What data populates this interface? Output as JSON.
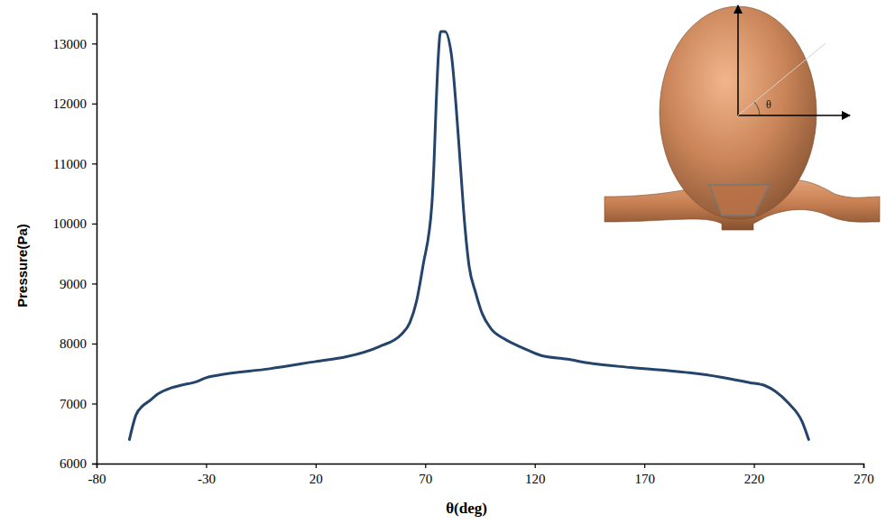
{
  "chart_data": {
    "type": "line",
    "x_label": "θ(deg)",
    "y_label": "Pressure(Pa)",
    "annotations": [
      "θ"
    ],
    "color": "#24446b",
    "x": [
      -65,
      -62,
      -59,
      -56,
      -52,
      -46,
      -42,
      -34,
      -30,
      -25,
      -1,
      20,
      34,
      49,
      59,
      63,
      66,
      69,
      73,
      74,
      75,
      76,
      77,
      79,
      82,
      84,
      86,
      88,
      90,
      93,
      96,
      100,
      106,
      115,
      123,
      135,
      144,
      164,
      189,
      205,
      218,
      225,
      230,
      236,
      242,
      245
    ],
    "values": [
      6400,
      6810,
      6960,
      7040,
      7160,
      7260,
      7300,
      7370,
      7430,
      7470,
      7580,
      7700,
      7780,
      7950,
      8150,
      8350,
      8700,
      9300,
      10300,
      11000,
      12000,
      12800,
      13200,
      13200,
      12800,
      12000,
      11000,
      10000,
      9300,
      8850,
      8500,
      8250,
      8080,
      7920,
      7800,
      7740,
      7680,
      7600,
      7520,
      7440,
      7350,
      7300,
      7200,
      7000,
      6700,
      6400
    ],
    "xlim": [
      -80,
      270
    ],
    "xticks": [
      -80,
      -30,
      20,
      70,
      120,
      170,
      220,
      270
    ],
    "ylim": [
      6000,
      13500
    ],
    "yticks": [
      6000,
      7000,
      8000,
      9000,
      10000,
      11000,
      12000,
      13000
    ],
    "grid": false
  }
}
